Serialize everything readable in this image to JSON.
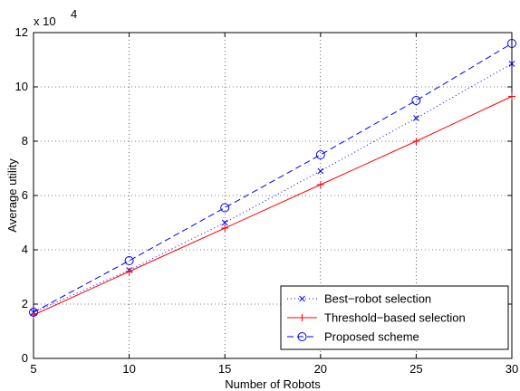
{
  "chart_data": {
    "type": "line",
    "xlabel": "Number of Robots",
    "ylabel": "Average utility",
    "y_exponent_base": "x 10",
    "y_exponent_power": "4",
    "xlim": [
      5,
      30
    ],
    "ylim": [
      0,
      12
    ],
    "x_ticks": [
      "5",
      "10",
      "15",
      "20",
      "25",
      "30"
    ],
    "y_ticks": [
      "0",
      "2",
      "4",
      "6",
      "8",
      "10",
      "12"
    ],
    "grid": true,
    "legend_position": "bottom-right",
    "x": [
      5,
      10,
      15,
      20,
      25,
      30
    ],
    "series": [
      {
        "name": "Best−robot selection",
        "values": [
          1.7,
          3.25,
          5.0,
          6.9,
          8.85,
          10.85
        ],
        "color": "#0000ff",
        "line_style": "dotted",
        "marker": "x"
      },
      {
        "name": "Threshold−based selection",
        "values": [
          1.6,
          3.2,
          4.8,
          6.4,
          8.0,
          9.65
        ],
        "color": "#ff0000",
        "line_style": "solid",
        "marker": "plus"
      },
      {
        "name": "Proposed scheme",
        "values": [
          1.7,
          3.6,
          5.55,
          7.5,
          9.5,
          11.6
        ],
        "color": "#0000ff",
        "line_style": "dashed",
        "marker": "circle"
      }
    ]
  }
}
